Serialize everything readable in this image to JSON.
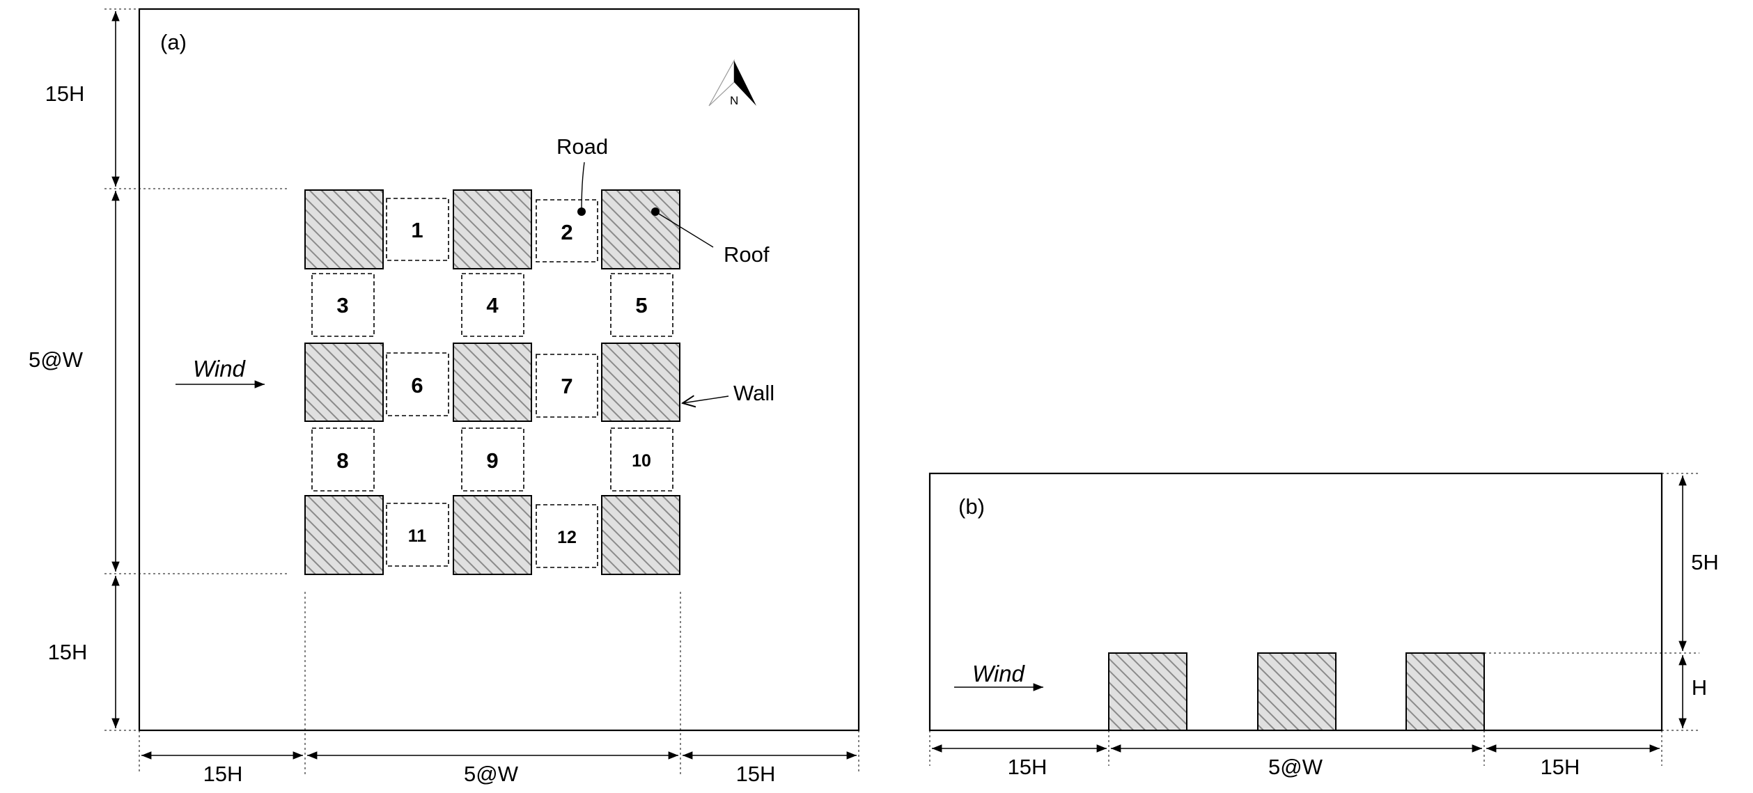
{
  "panel_a": {
    "tag": "(a)",
    "labels": {
      "road": "Road",
      "roof": "Roof",
      "wall": "Wall",
      "wind": "Wind",
      "north": "N"
    },
    "cells": [
      "1",
      "2",
      "3",
      "4",
      "5",
      "6",
      "7",
      "8",
      "9",
      "10",
      "11",
      "12"
    ],
    "dims": {
      "left_top": "15H",
      "left_mid": "5@W",
      "left_bottom": "15H",
      "bottom_left": "15H",
      "bottom_mid": "5@W",
      "bottom_right": "15H"
    }
  },
  "panel_b": {
    "tag": "(b)",
    "wind": "Wind",
    "dims": {
      "right_top": "5H",
      "right_bottom": "H",
      "bottom_left": "15H",
      "bottom_mid": "5@W",
      "bottom_right": "15H"
    }
  },
  "colors": {
    "hatch_bg": "#e0e0e0",
    "hatch_line": "#8a8a8a"
  }
}
